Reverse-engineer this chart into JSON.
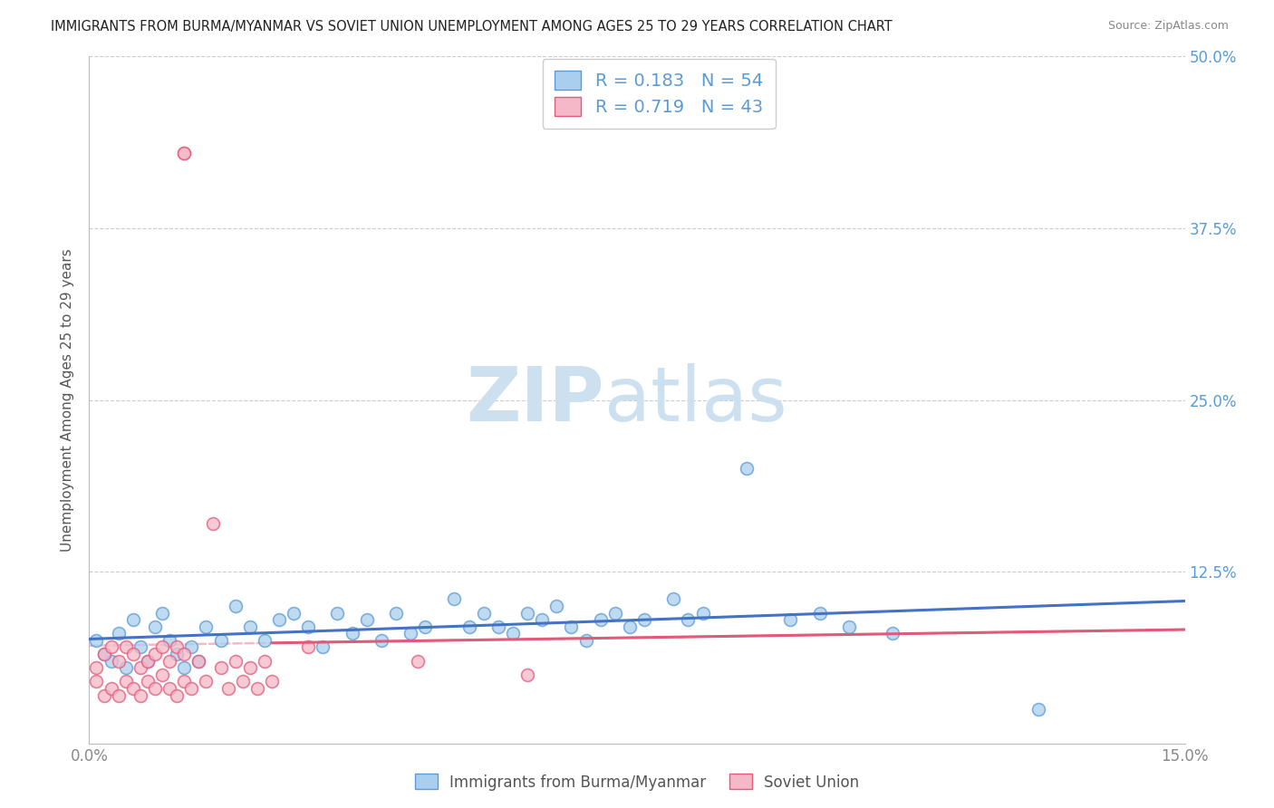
{
  "title": "IMMIGRANTS FROM BURMA/MYANMAR VS SOVIET UNION UNEMPLOYMENT AMONG AGES 25 TO 29 YEARS CORRELATION CHART",
  "source": "Source: ZipAtlas.com",
  "ylabel": "Unemployment Among Ages 25 to 29 years",
  "xlim": [
    0.0,
    0.15
  ],
  "ylim": [
    0.0,
    0.5
  ],
  "ytick_positions": [
    0.0,
    0.125,
    0.25,
    0.375,
    0.5
  ],
  "ytick_labels_right": [
    "",
    "12.5%",
    "25.0%",
    "37.5%",
    "50.0%"
  ],
  "xtick_positions": [
    0.0,
    0.15
  ],
  "xtick_labels": [
    "0.0%",
    "15.0%"
  ],
  "burma_R": 0.183,
  "burma_N": 54,
  "soviet_R": 0.719,
  "soviet_N": 43,
  "burma_color": "#aacfee",
  "burma_edge_color": "#5b9bd5",
  "soviet_color": "#f4b8c8",
  "soviet_edge_color": "#e05a7a",
  "burma_line_color": "#4472c4",
  "soviet_line_color": "#e05a7a",
  "soviet_line_dashed_color": "#f4b8c8",
  "burma_x": [
    0.001,
    0.002,
    0.003,
    0.004,
    0.005,
    0.006,
    0.007,
    0.008,
    0.009,
    0.01,
    0.011,
    0.012,
    0.013,
    0.014,
    0.015,
    0.016,
    0.018,
    0.02,
    0.022,
    0.024,
    0.026,
    0.028,
    0.03,
    0.032,
    0.034,
    0.036,
    0.038,
    0.04,
    0.042,
    0.044,
    0.046,
    0.05,
    0.052,
    0.054,
    0.056,
    0.058,
    0.06,
    0.062,
    0.064,
    0.066,
    0.068,
    0.07,
    0.072,
    0.074,
    0.076,
    0.08,
    0.082,
    0.084,
    0.09,
    0.096,
    0.1,
    0.104,
    0.11,
    0.13
  ],
  "burma_y": [
    0.075,
    0.065,
    0.06,
    0.08,
    0.055,
    0.09,
    0.07,
    0.06,
    0.085,
    0.095,
    0.075,
    0.065,
    0.055,
    0.07,
    0.06,
    0.085,
    0.075,
    0.1,
    0.085,
    0.075,
    0.09,
    0.095,
    0.085,
    0.07,
    0.095,
    0.08,
    0.09,
    0.075,
    0.095,
    0.08,
    0.085,
    0.105,
    0.085,
    0.095,
    0.085,
    0.08,
    0.095,
    0.09,
    0.1,
    0.085,
    0.075,
    0.09,
    0.095,
    0.085,
    0.09,
    0.105,
    0.09,
    0.095,
    0.2,
    0.09,
    0.095,
    0.085,
    0.08,
    0.025
  ],
  "soviet_x": [
    0.001,
    0.001,
    0.002,
    0.002,
    0.003,
    0.003,
    0.004,
    0.004,
    0.005,
    0.005,
    0.006,
    0.006,
    0.007,
    0.007,
    0.008,
    0.008,
    0.009,
    0.009,
    0.01,
    0.01,
    0.011,
    0.011,
    0.012,
    0.012,
    0.013,
    0.013,
    0.014,
    0.015,
    0.016,
    0.017,
    0.018,
    0.019,
    0.02,
    0.021,
    0.022,
    0.023,
    0.024,
    0.025,
    0.03,
    0.045,
    0.06,
    0.013,
    0.013
  ],
  "soviet_y": [
    0.045,
    0.055,
    0.035,
    0.065,
    0.04,
    0.07,
    0.035,
    0.06,
    0.045,
    0.07,
    0.04,
    0.065,
    0.035,
    0.055,
    0.045,
    0.06,
    0.04,
    0.065,
    0.05,
    0.07,
    0.04,
    0.06,
    0.035,
    0.07,
    0.045,
    0.065,
    0.04,
    0.06,
    0.045,
    0.16,
    0.055,
    0.04,
    0.06,
    0.045,
    0.055,
    0.04,
    0.06,
    0.045,
    0.07,
    0.06,
    0.05,
    0.43,
    0.43
  ],
  "watermark_color": "#cde0f0",
  "background_color": "#ffffff",
  "grid_color": "#cccccc",
  "title_color": "#222222",
  "axis_label_color": "#555555",
  "tick_color_right": "#5b9bd5",
  "tick_color_bottom": "#888888"
}
